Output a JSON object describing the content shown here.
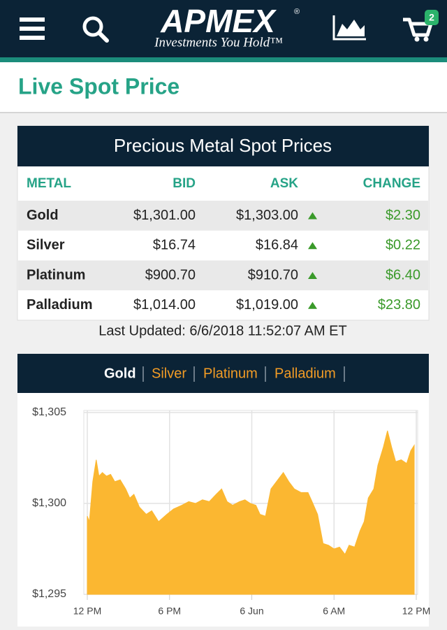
{
  "header": {
    "logo": "APMEX",
    "logo_mark": "®",
    "tagline": "Investments You Hold™",
    "cart_count": "2"
  },
  "page_title": "Live Spot Price",
  "table": {
    "title": "Precious Metal Spot Prices",
    "columns": [
      "METAL",
      "BID",
      "ASK",
      "CHANGE"
    ],
    "rows": [
      [
        "Gold",
        "$1,301.00",
        "$1,303.00",
        "$2.30"
      ],
      [
        "Silver",
        "$16.74",
        "$16.84",
        "$0.22"
      ],
      [
        "Platinum",
        "$900.70",
        "$910.70",
        "$6.40"
      ],
      [
        "Palladium",
        "$1,014.00",
        "$1,019.00",
        "$23.80"
      ]
    ]
  },
  "last_updated": "Last Updated: 6/6/2018 11:52:07 AM ET",
  "tabs": [
    "Gold",
    "Silver",
    "Platinum",
    "Palladium"
  ],
  "chart_data": {
    "type": "area",
    "color": "#fbb731",
    "grid": true,
    "x": [
      0,
      0.15,
      0.4,
      0.65,
      0.85,
      1.1,
      1.4,
      1.7,
      2.0,
      2.4,
      2.8,
      3.1,
      3.4,
      3.8,
      4.3,
      4.7,
      5.2,
      5.8,
      6.3,
      6.9,
      7.4,
      7.9,
      8.4,
      8.9,
      9.4,
      9.8,
      10.2,
      10.6,
      11.1,
      11.5,
      11.9,
      12.3,
      12.6,
      13.0,
      13.4,
      13.8,
      14.3,
      14.7,
      15.1,
      15.6,
      16.1,
      16.4,
      16.8,
      17.2,
      17.6,
      18.0,
      18.4,
      18.8,
      19.1,
      19.5,
      19.9,
      20.2,
      20.5,
      20.9,
      21.2,
      21.6,
      21.9,
      22.2,
      22.5,
      22.9,
      23.3,
      23.6,
      23.85
    ],
    "values": [
      1299.3,
      1299.0,
      1301.2,
      1302.4,
      1301.5,
      1301.7,
      1301.5,
      1301.6,
      1301.2,
      1301.3,
      1300.8,
      1300.3,
      1300.5,
      1299.8,
      1299.4,
      1299.6,
      1299.0,
      1299.4,
      1299.7,
      1299.9,
      1300.1,
      1300.0,
      1300.2,
      1300.1,
      1300.5,
      1300.8,
      1300.1,
      1299.9,
      1300.1,
      1300.2,
      1300.0,
      1299.9,
      1299.4,
      1299.3,
      1300.8,
      1301.2,
      1301.7,
      1301.2,
      1300.8,
      1300.6,
      1300.6,
      1300.1,
      1299.4,
      1297.8,
      1297.7,
      1297.5,
      1297.6,
      1297.2,
      1297.7,
      1297.6,
      1298.5,
      1299.0,
      1300.3,
      1300.8,
      1302.1,
      1303.1,
      1304.0,
      1303.1,
      1302.3,
      1302.4,
      1302.2,
      1302.9,
      1303.2
    ],
    "xlim": [
      0,
      24
    ],
    "xticks": [
      {
        "value": 0,
        "label": "12 PM"
      },
      {
        "value": 6,
        "label": "6 PM"
      },
      {
        "value": 12,
        "label": "6 Jun"
      },
      {
        "value": 18,
        "label": "6 AM"
      },
      {
        "value": 24,
        "label": "12 PM"
      }
    ],
    "ylim": [
      1295,
      1305
    ],
    "yticks": [
      {
        "value": 1295,
        "label": "$1,295"
      },
      {
        "value": 1300,
        "label": "$1,300"
      },
      {
        "value": 1305,
        "label": "$1,305"
      }
    ]
  }
}
